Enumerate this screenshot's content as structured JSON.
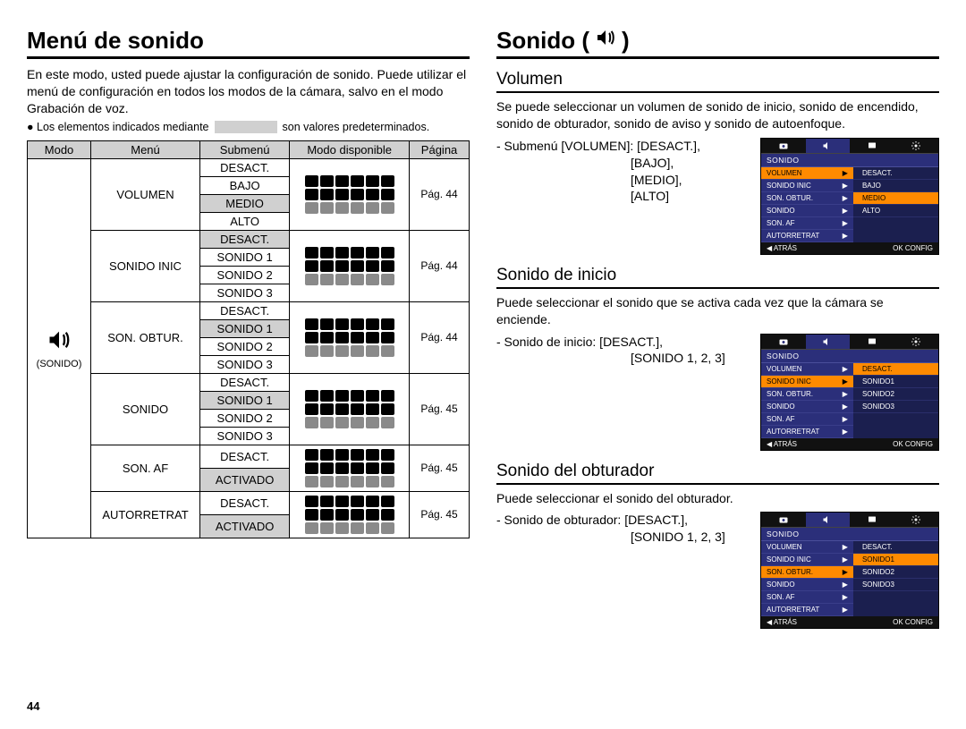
{
  "pageNumber": "44",
  "left": {
    "title": "Menú de sonido",
    "intro": "En este modo, usted puede ajustar la configuración de sonido. Puede utilizar el menú de configuración en todos los modos de la cámara, salvo en el modo Grabación de voz.",
    "note_pre": "● Los elementos indicados mediante",
    "note_post": "son valores predeterminados.",
    "table": {
      "headers": [
        "Modo",
        "Menú",
        "Submenú",
        "Modo disponible",
        "Página"
      ],
      "modeLabel": "(SONIDO)",
      "groups": [
        {
          "menu": "VOLUMEN",
          "page": "Pág. 44",
          "subs": [
            {
              "label": "DESACT.",
              "hl": false
            },
            {
              "label": "BAJO",
              "hl": false
            },
            {
              "label": "MEDIO",
              "hl": true
            },
            {
              "label": "ALTO",
              "hl": false
            }
          ]
        },
        {
          "menu": "SONIDO INIC",
          "page": "Pág. 44",
          "subs": [
            {
              "label": "DESACT.",
              "hl": true
            },
            {
              "label": "SONIDO 1",
              "hl": false
            },
            {
              "label": "SONIDO 2",
              "hl": false
            },
            {
              "label": "SONIDO 3",
              "hl": false
            }
          ]
        },
        {
          "menu": "SON. OBTUR.",
          "page": "Pág. 44",
          "subs": [
            {
              "label": "DESACT.",
              "hl": false
            },
            {
              "label": "SONIDO 1",
              "hl": true
            },
            {
              "label": "SONIDO 2",
              "hl": false
            },
            {
              "label": "SONIDO 3",
              "hl": false
            }
          ]
        },
        {
          "menu": "SONIDO",
          "page": "Pág. 45",
          "subs": [
            {
              "label": "DESACT.",
              "hl": false
            },
            {
              "label": "SONIDO 1",
              "hl": true
            },
            {
              "label": "SONIDO 2",
              "hl": false
            },
            {
              "label": "SONIDO 3",
              "hl": false
            }
          ]
        },
        {
          "menu": "SON. AF",
          "page": "Pág. 45",
          "subs": [
            {
              "label": "DESACT.",
              "hl": false
            },
            {
              "label": "ACTIVADO",
              "hl": true
            }
          ]
        },
        {
          "menu": "AUTORRETRAT",
          "page": "Pág. 45",
          "subs": [
            {
              "label": "DESACT.",
              "hl": false
            },
            {
              "label": "ACTIVADO",
              "hl": true
            }
          ]
        }
      ]
    }
  },
  "right": {
    "title": "Sonido (",
    "title_close": ")",
    "sections": [
      {
        "head": "Volumen",
        "text": "Se puede seleccionar un volumen de sonido de inicio, sonido de encendido, sonido de obturador, sonido de aviso y sonido de autoenfoque.",
        "linesLabel": "- Submenú [VOLUMEN]:",
        "lines": [
          "[DESACT.],",
          "[BAJO],",
          "[MEDIO],",
          "[ALTO]"
        ],
        "cam": {
          "header": "SONIDO",
          "menuItems": [
            "VOLUMEN",
            "SONIDO INIC",
            "SON. OBTUR.",
            "SONIDO",
            "SON. AF",
            "AUTORRETRAT"
          ],
          "selectedMenu": 0,
          "options": [
            "DESACT.",
            "BAJO",
            "MEDIO",
            "ALTO"
          ],
          "selectedOpt": 2,
          "footer": {
            "left": "◀  ATRÁS",
            "right": "OK   CONFIG"
          }
        }
      },
      {
        "head": "Sonido de inicio",
        "text": "Puede seleccionar el sonido que se activa cada vez que la cámara se enciende.",
        "linesLabel": "- Sonido de inicio:",
        "lines": [
          "[DESACT.],",
          "[SONIDO 1, 2, 3]"
        ],
        "cam": {
          "header": "SONIDO",
          "menuItems": [
            "VOLUMEN",
            "SONIDO INIC",
            "SON. OBTUR.",
            "SONIDO",
            "SON. AF",
            "AUTORRETRAT"
          ],
          "selectedMenu": 1,
          "options": [
            "DESACT.",
            "SONIDO1",
            "SONIDO2",
            "SONIDO3"
          ],
          "selectedOpt": 0,
          "footer": {
            "left": "◀  ATRÁS",
            "right": "OK   CONFIG"
          }
        }
      },
      {
        "head": "Sonido del obturador",
        "text": "Puede seleccionar el sonido del obturador.",
        "linesLabel": "- Sonido de obturador:",
        "lines": [
          "[DESACT.],",
          "[SONIDO 1, 2, 3]"
        ],
        "cam": {
          "header": "SONIDO",
          "menuItems": [
            "VOLUMEN",
            "SONIDO INIC",
            "SON. OBTUR.",
            "SONIDO",
            "SON. AF",
            "AUTORRETRAT"
          ],
          "selectedMenu": 2,
          "options": [
            "DESACT.",
            "SONIDO1",
            "SONIDO2",
            "SONIDO3"
          ],
          "selectedOpt": 1,
          "footer": {
            "left": "◀  ATRÁS",
            "right": "OK   CONFIG"
          }
        }
      }
    ]
  },
  "style": {
    "highlight_bg": "#d0d0d0",
    "cam_bg": "#2b2f7a",
    "cam_sel": "#ff8a00"
  }
}
